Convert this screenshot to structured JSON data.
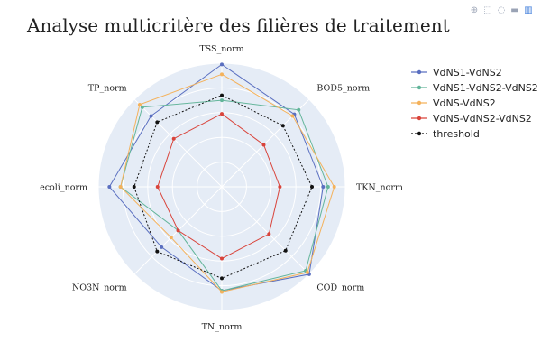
{
  "modebar": {
    "icons": [
      "zoom-icon",
      "box-select-icon",
      "lasso-icon",
      "pan-icon",
      "plotly-logo-icon"
    ]
  },
  "chart_data": {
    "type": "radar",
    "title": "Analyse multicritère des filières de traitement",
    "axes": [
      "TSS_norm",
      "BOD5_norm",
      "TKN_norm",
      "COD_norm",
      "TN_norm",
      "NO3N_norm",
      "ecoli_norm",
      "TP_norm"
    ],
    "radial_range": [
      0,
      1
    ],
    "grid": true,
    "legend_position": "top-right",
    "series": [
      {
        "name": "VdNS1-VdNS2",
        "color": "#5a6fc0",
        "dash": "solid",
        "values": [
          0.99,
          0.83,
          0.82,
          1.0,
          0.84,
          0.69,
          0.91,
          0.81
        ]
      },
      {
        "name": "VdNS1-VdNS2-VdNS2",
        "color": "#63b59a",
        "dash": "solid",
        "values": [
          0.7,
          0.88,
          0.86,
          0.96,
          0.84,
          0.5,
          0.82,
          0.91
        ]
      },
      {
        "name": "VdNS-VdNS2",
        "color": "#f4b25c",
        "dash": "solid",
        "values": [
          0.91,
          0.81,
          0.91,
          0.98,
          0.85,
          0.58,
          0.82,
          0.94
        ]
      },
      {
        "name": "VdNS-VdNS2-VdNS2",
        "color": "#d9443b",
        "dash": "solid",
        "values": [
          0.59,
          0.48,
          0.47,
          0.54,
          0.58,
          0.5,
          0.52,
          0.55
        ]
      },
      {
        "name": "threshold",
        "color": "#111111",
        "dash": "dot",
        "values": [
          0.74,
          0.7,
          0.73,
          0.73,
          0.74,
          0.74,
          0.71,
          0.74
        ]
      }
    ]
  }
}
